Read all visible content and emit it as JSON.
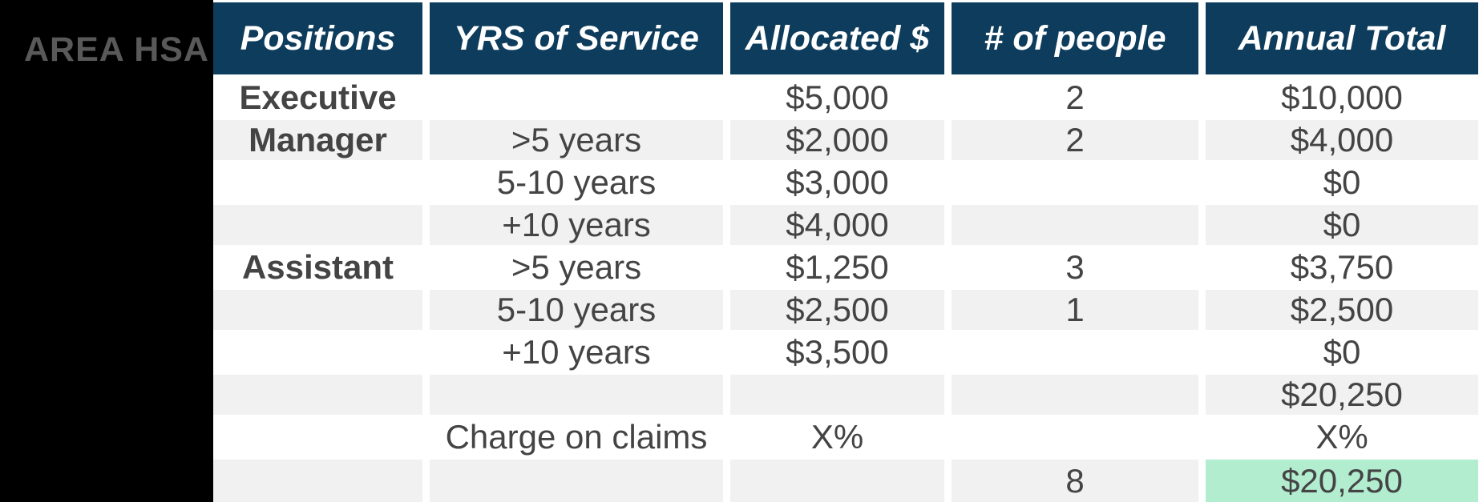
{
  "sidebar": {
    "label": "AREA HSA",
    "bg": "#000000",
    "label_color": "#595959"
  },
  "table": {
    "header": {
      "bg": "#0d3c5c",
      "text_color": "#ffffff",
      "columns": [
        "Positions",
        "YRS of Service",
        "Allocated $",
        "# of people",
        "Annual Total"
      ]
    },
    "colors": {
      "stripe": "#f1f1f1",
      "row_white": "#ffffff",
      "cell_text": "#444444",
      "highlight": "#b2edd0"
    },
    "rows": [
      {
        "position": "Executive",
        "yrs": "",
        "allocated": "$5,000",
        "people": "2",
        "total": "$10,000",
        "stripe": false,
        "total_highlight": false
      },
      {
        "position": "Manager",
        "yrs": ">5 years",
        "allocated": "$2,000",
        "people": "2",
        "total": "$4,000",
        "stripe": true,
        "total_highlight": false
      },
      {
        "position": "",
        "yrs": "5-10 years",
        "allocated": "$3,000",
        "people": "",
        "total": "$0",
        "stripe": false,
        "total_highlight": false
      },
      {
        "position": "",
        "yrs": "+10 years",
        "allocated": "$4,000",
        "people": "",
        "total": "$0",
        "stripe": true,
        "total_highlight": false
      },
      {
        "position": "Assistant",
        "yrs": ">5 years",
        "allocated": "$1,250",
        "people": "3",
        "total": "$3,750",
        "stripe": false,
        "total_highlight": false
      },
      {
        "position": "",
        "yrs": "5-10 years",
        "allocated": "$2,500",
        "people": "1",
        "total": "$2,500",
        "stripe": true,
        "total_highlight": false
      },
      {
        "position": "",
        "yrs": "+10 years",
        "allocated": "$3,500",
        "people": "",
        "total": "$0",
        "stripe": false,
        "total_highlight": false
      },
      {
        "position": "",
        "yrs": "",
        "allocated": "",
        "people": "",
        "total": "$20,250",
        "stripe": true,
        "total_highlight": false
      },
      {
        "position": "",
        "yrs": "Charge on claims",
        "allocated": "X%",
        "people": "",
        "total": "X%",
        "stripe": false,
        "total_highlight": false
      },
      {
        "position": "",
        "yrs": "",
        "allocated": "",
        "people": "8",
        "total": "$20,250",
        "stripe": true,
        "total_highlight": true
      }
    ]
  }
}
